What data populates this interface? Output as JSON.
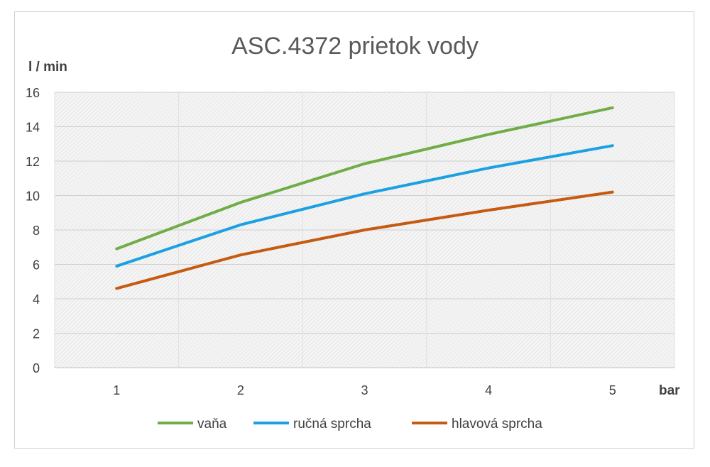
{
  "chart_data": {
    "type": "line",
    "title": "ASC.4372 prietok vody",
    "ylabel": "l / min",
    "xlabel": "bar",
    "x": [
      1,
      2,
      3,
      4,
      5
    ],
    "ylim": [
      0,
      16
    ],
    "yticks": [
      0,
      2,
      4,
      6,
      8,
      10,
      12,
      14,
      16
    ],
    "grid": true,
    "legend_position": "bottom",
    "series": [
      {
        "name": "vaňa",
        "color": "#70AD47",
        "values": [
          6.9,
          9.6,
          11.85,
          13.55,
          15.1
        ]
      },
      {
        "name": "ručná sprcha",
        "color": "#1BA1E2",
        "values": [
          5.9,
          8.3,
          10.1,
          11.6,
          12.9
        ]
      },
      {
        "name": "hlavová sprcha",
        "color": "#C55A11",
        "values": [
          4.6,
          6.55,
          8.0,
          9.15,
          10.2
        ]
      }
    ]
  }
}
